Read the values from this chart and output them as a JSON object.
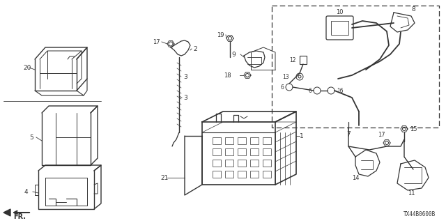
{
  "diagram_code": "TX44B0600B",
  "bg": "#ffffff",
  "lc": "#333333",
  "figsize": [
    6.4,
    3.2
  ],
  "dpi": 100
}
